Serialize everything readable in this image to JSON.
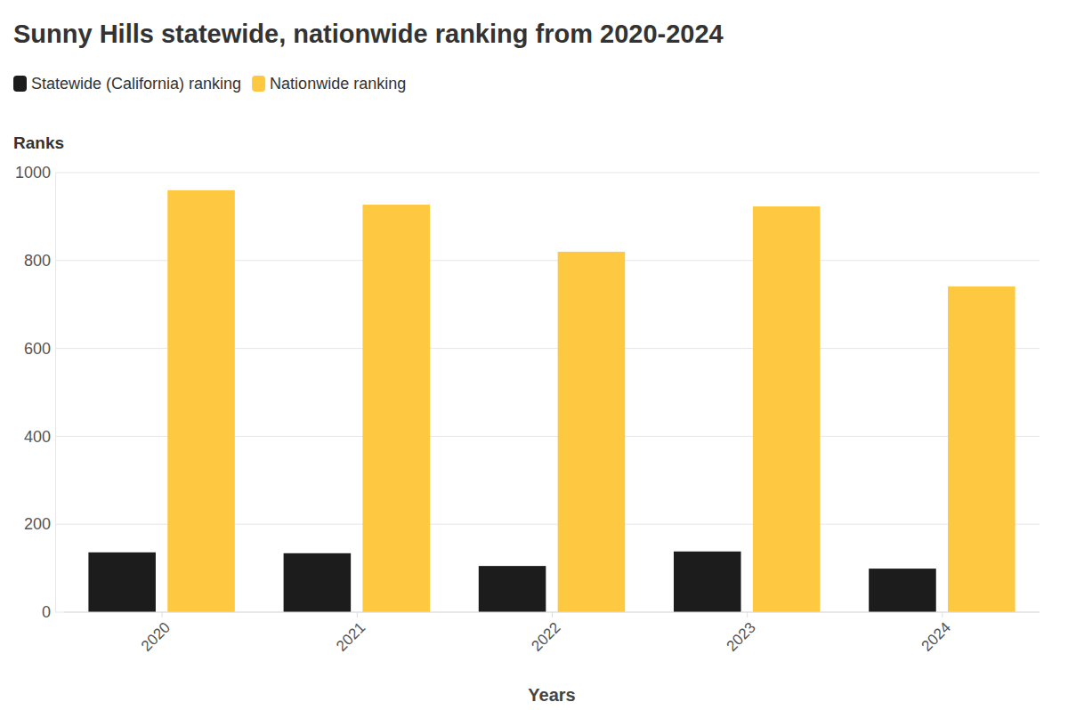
{
  "chart_data": {
    "type": "bar",
    "title": "Sunny Hills statewide, nationwide ranking from 2020-2024",
    "x_label": "Years",
    "y_label": "Ranks",
    "categories": [
      "2020",
      "2021",
      "2022",
      "2023",
      "2024"
    ],
    "series": [
      {
        "name": "Statewide (California) ranking",
        "color": "#1c1c1c",
        "values": [
          136,
          134,
          105,
          138,
          99
        ]
      },
      {
        "name": "Nationwide ranking",
        "color": "#fec841",
        "values": [
          960,
          927,
          820,
          923,
          741
        ]
      }
    ],
    "ylim": [
      0,
      1000
    ],
    "yticks": [
      0,
      200,
      400,
      600,
      800,
      1000
    ],
    "grid": true,
    "legend": "top-left"
  }
}
